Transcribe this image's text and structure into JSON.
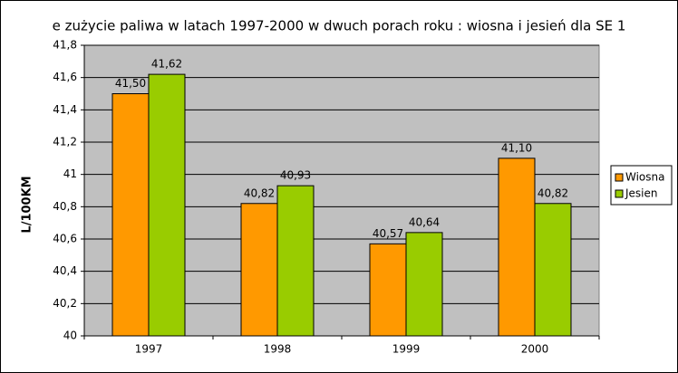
{
  "chart_data": {
    "type": "bar",
    "title": "e zużycie paliwa w latach 1997-2000 w dwuch porach roku : wiosna i jesień dla SE 1",
    "y_label": "L/100KM",
    "categories": [
      "1997",
      "1998",
      "1999",
      "2000"
    ],
    "series": [
      {
        "name": "Wiosna",
        "color": "#ff9900",
        "values": [
          41.5,
          40.82,
          40.57,
          41.1
        ],
        "value_labels": [
          "41,50",
          "40,82",
          "40,57",
          "41,10"
        ]
      },
      {
        "name": "Jesien",
        "color": "#99cc00",
        "values": [
          41.62,
          40.93,
          40.64,
          40.82
        ],
        "value_labels": [
          "41,62",
          "40,93",
          "40,64",
          "40,82"
        ]
      }
    ],
    "ylim": [
      40,
      41.8
    ],
    "yticks": [
      40,
      {
        "value": 40.2,
        "label": "40,2"
      },
      {
        "value": 40.4,
        "label": "40,4"
      },
      {
        "value": 40.6,
        "label": "40,6"
      },
      {
        "value": 40.8,
        "label": "40,8"
      },
      41,
      {
        "value": 41.2,
        "label": "41,2"
      },
      {
        "value": 41.4,
        "label": "41,4"
      },
      {
        "value": 41.6,
        "label": "41,6"
      },
      {
        "value": 41.8,
        "label": "41,8"
      }
    ],
    "grid": true
  }
}
